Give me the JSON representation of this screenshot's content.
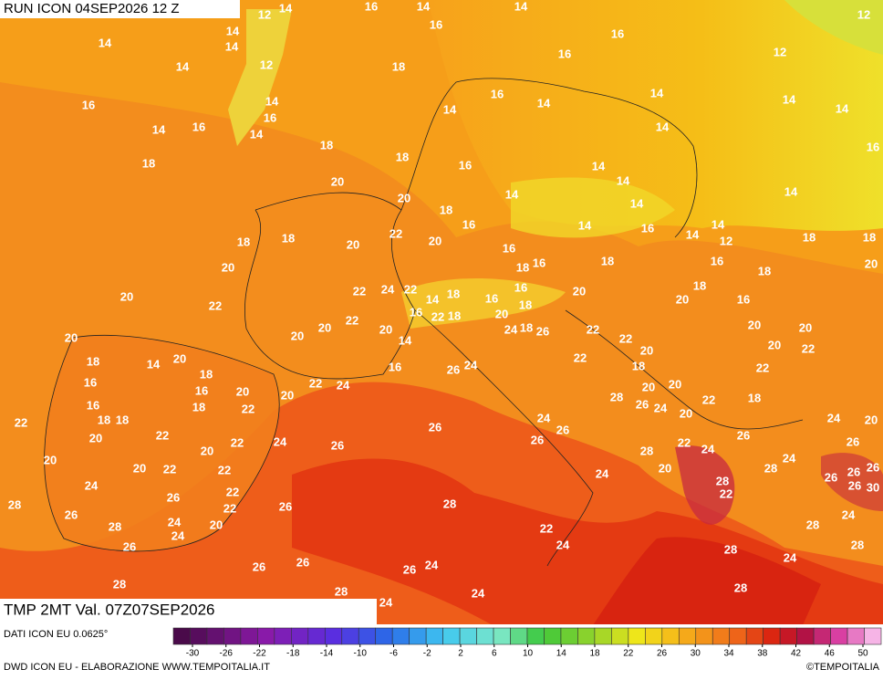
{
  "header": {
    "run": "RUN ICON 04SEP2026 12 Z",
    "variable": "TMP 2MT Val. 07Z07SEP2026"
  },
  "footer": {
    "source": "DATI ICON EU 0.0625°",
    "credit": "DWD ICON EU - ELABORAZIONE WWW.TEMPOITALIA.IT",
    "copyright": "©TEMPOITALIA"
  },
  "legend_ticks": [
    -30,
    -26,
    -22,
    -18,
    -14,
    -10,
    -6,
    -2,
    2,
    6,
    10,
    14,
    18,
    22,
    26,
    30,
    34,
    38,
    42,
    46,
    50
  ],
  "map_labels": [
    12,
    14,
    16,
    14,
    14,
    12,
    16,
    16,
    14,
    14,
    14,
    12,
    14,
    18,
    16,
    12,
    16,
    14,
    16,
    16,
    14,
    14,
    14,
    14,
    14,
    14,
    16,
    14,
    14,
    18,
    18,
    18,
    16,
    14,
    16,
    20,
    20,
    14,
    14,
    14,
    18,
    16,
    14,
    14,
    16,
    14,
    22,
    18,
    18,
    20,
    20,
    16,
    14,
    12,
    18,
    18,
    20,
    18,
    16,
    18,
    16,
    20,
    18,
    20,
    22,
    22,
    24,
    22,
    16,
    14,
    18,
    16,
    18,
    20,
    18,
    20,
    16,
    22,
    20,
    20,
    16,
    22,
    18,
    20,
    18,
    20,
    24,
    26,
    22,
    22,
    20,
    20,
    20,
    14,
    20,
    14,
    18,
    20,
    20,
    22,
    22,
    18,
    16,
    26,
    24,
    18,
    22,
    16,
    16,
    20,
    22,
    24,
    20,
    20,
    16,
    18,
    20,
    22,
    28,
    26,
    24,
    22,
    18,
    24,
    20,
    22,
    18,
    18,
    20,
    26,
    24,
    26,
    22,
    20,
    22,
    24,
    26,
    26,
    26,
    26,
    20,
    22,
    24,
    28,
    24,
    20,
    20,
    22,
    22,
    20,
    28,
    26,
    26,
    26,
    24,
    22,
    24,
    28,
    26,
    30,
    26,
    22,
    28,
    22,
    26,
    28,
    26,
    24,
    20,
    24,
    28,
    24,
    22,
    28,
    26,
    24,
    28,
    28,
    26,
    26,
    24,
    26,
    24,
    28,
    24,
    28,
    28,
    24,
    22
  ]
}
